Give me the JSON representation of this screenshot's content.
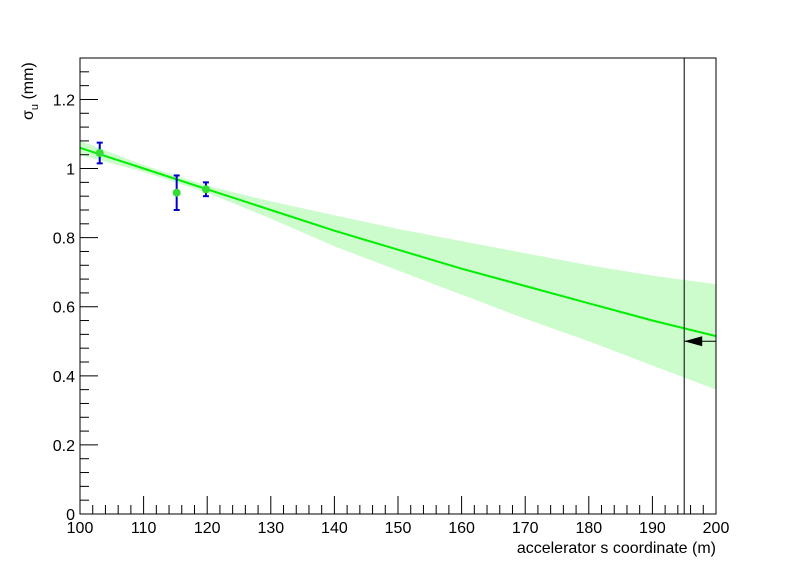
{
  "chart_data": {
    "type": "scatter",
    "xlabel": "accelerator s coordinate (m)",
    "ylabel_main": "σ",
    "ylabel_sub": "u",
    "ylabel_unit": " (mm)",
    "xlim": [
      100,
      200
    ],
    "ylim": [
      0,
      1.32
    ],
    "x_ticks": [
      100,
      110,
      120,
      130,
      140,
      150,
      160,
      170,
      180,
      190,
      200
    ],
    "x_tick_labels": [
      "100",
      "110",
      "120",
      "130",
      "140",
      "150",
      "160",
      "170",
      "180",
      "190",
      "200"
    ],
    "y_ticks": [
      0,
      0.2,
      0.4,
      0.6,
      0.8,
      1,
      1.2
    ],
    "y_tick_labels": [
      "0",
      "0.2",
      "0.4",
      "0.6",
      "0.8",
      "1",
      "1.2"
    ],
    "grid": false,
    "points": [
      {
        "x": 103.1,
        "y": 1.045,
        "err": 0.03
      },
      {
        "x": 115.2,
        "y": 0.93,
        "err": 0.05
      },
      {
        "x": 119.8,
        "y": 0.94,
        "err": 0.02
      }
    ],
    "fit_line": {
      "x": [
        100,
        110,
        120,
        130,
        140,
        150,
        160,
        170,
        180,
        190,
        200
      ],
      "y": [
        1.06,
        1.0,
        0.94,
        0.88,
        0.82,
        0.765,
        0.71,
        0.66,
        0.61,
        0.56,
        0.515
      ]
    },
    "confidence_band": {
      "x": [
        100,
        110,
        120,
        130,
        140,
        150,
        160,
        170,
        180,
        190,
        200
      ],
      "upper": [
        1.08,
        1.01,
        0.95,
        0.905,
        0.865,
        0.825,
        0.79,
        0.755,
        0.72,
        0.69,
        0.665
      ],
      "lower": [
        1.04,
        0.99,
        0.93,
        0.855,
        0.775,
        0.705,
        0.635,
        0.565,
        0.5,
        0.43,
        0.36
      ]
    },
    "vertical_marker_x": 195,
    "arrow_marker": {
      "x": 195,
      "y": 0.5
    },
    "colors": {
      "fit": "#00ee00",
      "band": "#ccfccc",
      "points": "#33dd33",
      "error_bars": "#0000cc",
      "axes": "#000000"
    }
  }
}
